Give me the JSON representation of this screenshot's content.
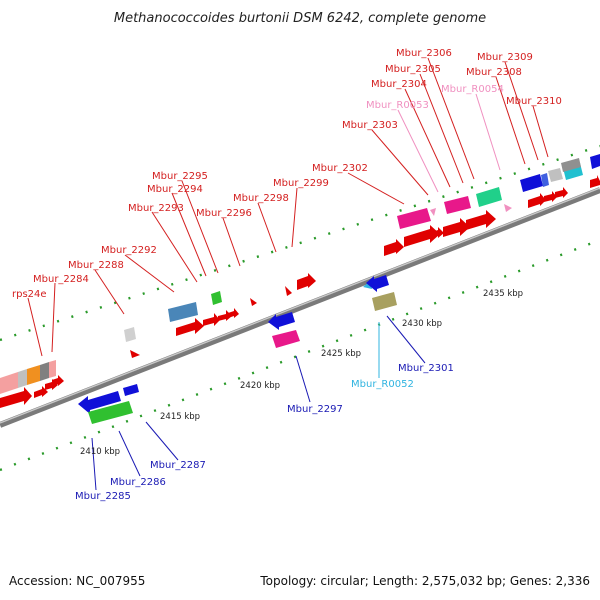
{
  "title": "Methanococcoides burtonii DSM 6242, complete genome",
  "footer": {
    "accession": "Accession: NC_007955",
    "info": "Topology: circular; Length: 2,575,032 bp; Genes: 2,336"
  },
  "colors": {
    "forward_label": "#d42020",
    "reverse_label": "#1a1ab4",
    "rna_forward_label": "#f090c0",
    "rna_reverse_label": "#30b4e0"
  },
  "kbp_ticks": [
    "2410 kbp",
    "2415 kbp",
    "2420 kbp",
    "2425 kbp",
    "2430 kbp",
    "2435 kbp"
  ],
  "forward_genes": [
    "rps24e",
    "Mbur_2284",
    "Mbur_2288",
    "Mbur_2292",
    "Mbur_2293",
    "Mbur_2294",
    "Mbur_2295",
    "Mbur_2296",
    "Mbur_2298",
    "Mbur_2299",
    "Mbur_2302",
    "Mbur_2303",
    "Mbur_R0053",
    "Mbur_2304",
    "Mbur_2305",
    "Mbur_2306",
    "Mbur_R0054",
    "Mbur_2308",
    "Mbur_2309",
    "Mbur_2310"
  ],
  "reverse_genes": [
    "Mbur_2285",
    "Mbur_2286",
    "Mbur_2287",
    "Mbur_2297",
    "Mbur_R0052",
    "Mbur_2301"
  ]
}
